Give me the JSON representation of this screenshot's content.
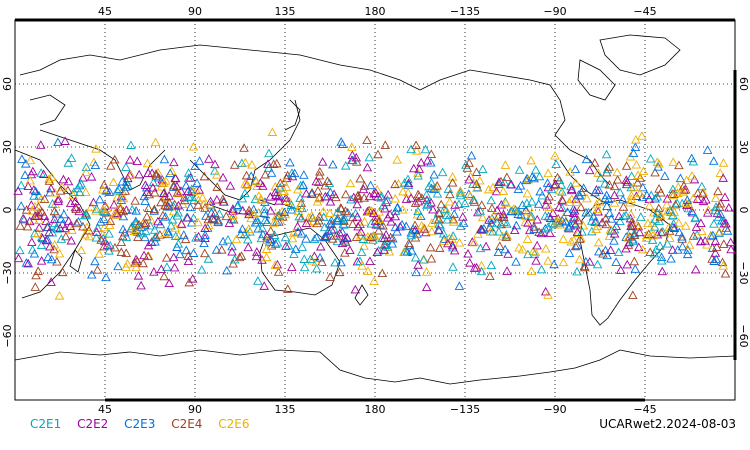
{
  "map": {
    "lon_labels": [
      "45",
      "90",
      "135",
      "180",
      "−135",
      "−90",
      "−45"
    ],
    "lat_labels_left": [
      "60",
      "30",
      "0",
      "−30",
      "−60"
    ],
    "lat_labels_right": [
      "60",
      "30",
      "0",
      "−30",
      "−60"
    ],
    "lon_range": [
      0,
      360
    ],
    "lat_range": [
      -90,
      90
    ],
    "grid": "dotted"
  },
  "legend": [
    {
      "name": "C2E1",
      "color": "#00a8c0"
    },
    {
      "name": "C2E2",
      "color": "#a000a0"
    },
    {
      "name": "C2E3",
      "color": "#0070e0"
    },
    {
      "name": "C2E4",
      "color": "#a04020"
    },
    {
      "name": "C2E6",
      "color": "#f0b000"
    }
  ],
  "caption": "UCARwet2.2024-08-03",
  "observations": {
    "marker": "triangle",
    "lat_band": [
      -45,
      45
    ],
    "density": "high"
  }
}
